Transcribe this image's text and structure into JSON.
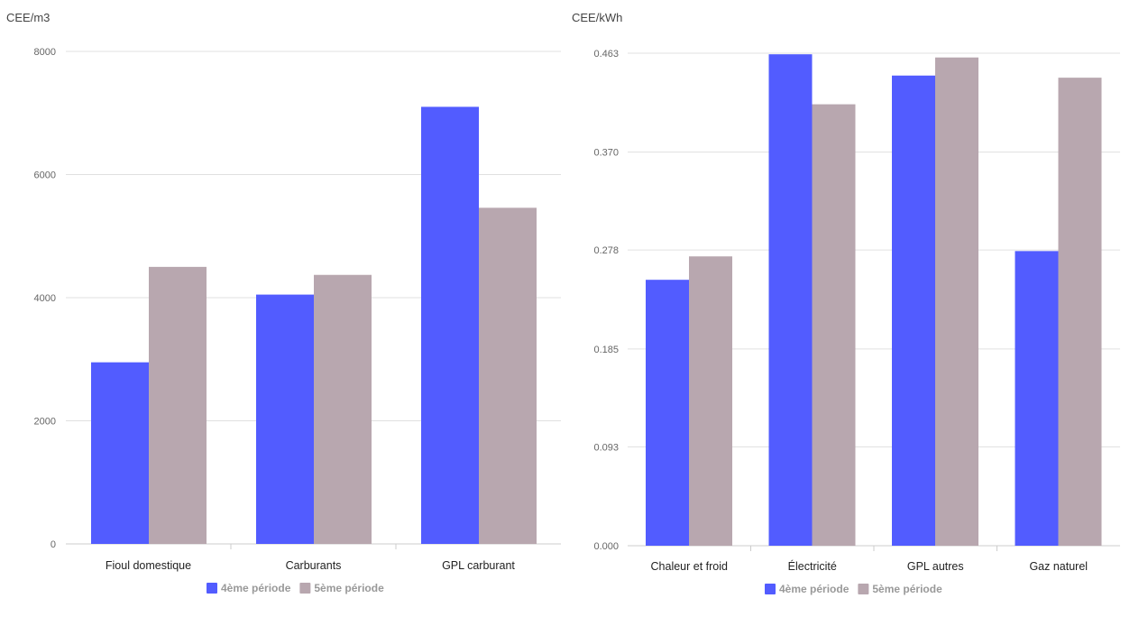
{
  "colors": {
    "series1": "#525cff",
    "series2": "#b8a7af",
    "grid": "#e0e0e0",
    "axis": "#cccccc"
  },
  "chart_data": [
    {
      "type": "bar",
      "ylabel": "CEE/m3",
      "categories": [
        "Fioul domestique",
        "Carburants",
        "GPL carburant"
      ],
      "yticks": [
        "0",
        "2000",
        "4000",
        "6000",
        "8000"
      ],
      "ylim": [
        0,
        8000
      ],
      "grid": true,
      "legend_position": "bottom-center",
      "series": [
        {
          "name": "4ème période",
          "values": [
            2950,
            4050,
            7100
          ]
        },
        {
          "name": "5ème période",
          "values": [
            4500,
            4370,
            5460
          ]
        }
      ]
    },
    {
      "type": "bar",
      "ylabel": "CEE/kWh",
      "categories": [
        "Chaleur et froid",
        "Électricité",
        "GPL autres",
        "Gaz naturel"
      ],
      "yticks": [
        "0.000",
        "0.093",
        "0.185",
        "0.278",
        "0.370",
        "0.463"
      ],
      "ylim": [
        0,
        0.463
      ],
      "grid": true,
      "legend_position": "bottom-center",
      "series": [
        {
          "name": "4ème période",
          "values": [
            0.25,
            0.462,
            0.442,
            0.277
          ]
        },
        {
          "name": "5ème période",
          "values": [
            0.272,
            0.415,
            0.459,
            0.44
          ]
        }
      ]
    }
  ]
}
